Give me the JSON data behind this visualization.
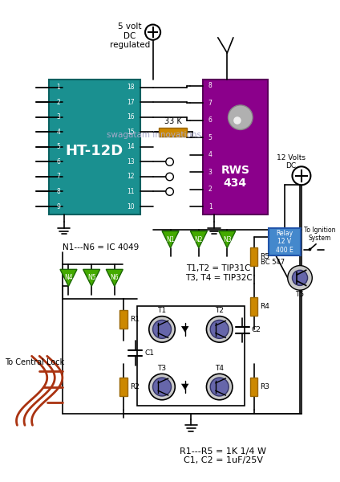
{
  "bg_color": "#ffffff",
  "teal_ic_color": "#1a9090",
  "purple_ic_color": "#8B008B",
  "relay_color": "#4488cc",
  "resistor_color": "#cc8800",
  "green_gate_color": "#44aa00",
  "wire_color": "#000000",
  "red_wire_color": "#aa3311",
  "transistor_body": "#c8c8c8",
  "transistor_fill": "#6666aa",
  "text_watermark": "swagatam innovations",
  "title_bottom": "R1---R5 = 1K 1/4 W\nC1, C2 = 1uF/25V",
  "label_n1n6": "N1---N6 = IC 4049",
  "label_t1t2": "T1,T2 = TIP31C\nT3, T4 = TIP32C",
  "label_ht12d": "HT-12D",
  "label_rws": "RWS\n434",
  "label_33k": "33 K",
  "label_5v": "5 volt\nDC\nregulated",
  "label_12v": "12 Volts\nDC",
  "label_relay": "Relay\n12 V\n400 E",
  "label_ignition": "To Ignition\nSystem",
  "label_central": "To Central Lock",
  "label_bc547": "BC 547",
  "label_t5": "T5",
  "label_r5": "R5",
  "label_r4": "R4",
  "label_r1": "R1",
  "label_r2": "R2",
  "label_r3": "R3",
  "label_c1": "C1",
  "label_c2": "C2",
  "label_t1": "T1",
  "label_t2": "T2",
  "label_t3": "T3",
  "label_t4": "T4"
}
